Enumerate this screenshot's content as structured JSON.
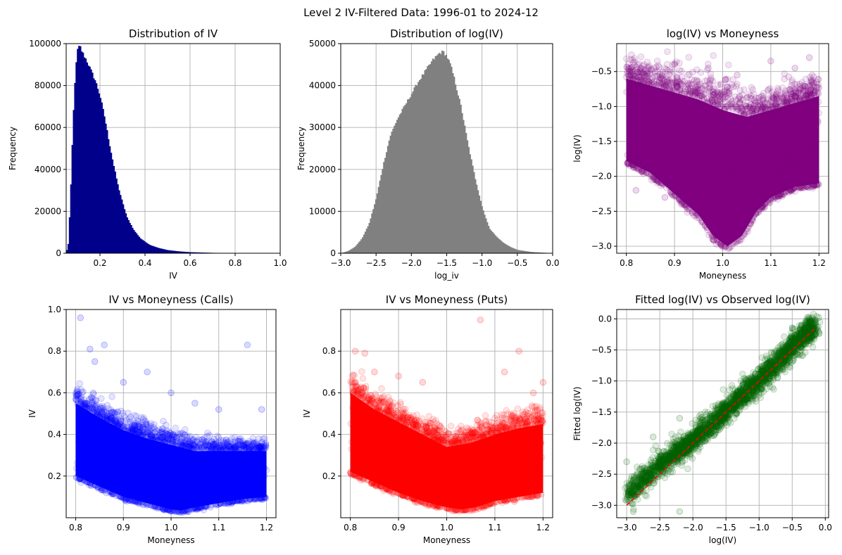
{
  "figure": {
    "title": "Level 2 IV-Filtered Data: 1996-01 to 2024-12"
  },
  "chart_data": [
    {
      "type": "histogram",
      "title": "Distribution of IV",
      "xlabel": "IV",
      "ylabel": "Frequency",
      "xlim": [
        0.05,
        1.0
      ],
      "ylim": [
        0,
        100000
      ],
      "xticks": [
        0.2,
        0.4,
        0.6,
        0.8,
        1.0
      ],
      "xtick_labels": [
        "0.2",
        "0.4",
        "0.6",
        "0.8",
        "1.0"
      ],
      "yticks": [
        0,
        20000,
        40000,
        60000,
        80000,
        100000
      ],
      "ytick_labels": [
        "0",
        "20000",
        "40000",
        "60000",
        "80000",
        "100000"
      ],
      "grid": true,
      "color": "#00008b",
      "curve": [
        [
          0.05,
          0
        ],
        [
          0.06,
          5000
        ],
        [
          0.07,
          30000
        ],
        [
          0.08,
          62000
        ],
        [
          0.09,
          85000
        ],
        [
          0.1,
          97000
        ],
        [
          0.11,
          99000
        ],
        [
          0.12,
          96000
        ],
        [
          0.14,
          92000
        ],
        [
          0.16,
          87000
        ],
        [
          0.18,
          82000
        ],
        [
          0.2,
          75000
        ],
        [
          0.22,
          65000
        ],
        [
          0.24,
          53000
        ],
        [
          0.26,
          42000
        ],
        [
          0.28,
          32000
        ],
        [
          0.3,
          24000
        ],
        [
          0.32,
          17000
        ],
        [
          0.35,
          11000
        ],
        [
          0.38,
          7000
        ],
        [
          0.42,
          4000
        ],
        [
          0.46,
          2500
        ],
        [
          0.5,
          1500
        ],
        [
          0.55,
          900
        ],
        [
          0.6,
          500
        ],
        [
          0.7,
          200
        ],
        [
          0.8,
          80
        ],
        [
          0.9,
          30
        ],
        [
          1.0,
          0
        ]
      ]
    },
    {
      "type": "histogram",
      "title": "Distribution of log(IV)",
      "xlabel": "log_iv",
      "ylabel": "Frequency",
      "xlim": [
        -3.0,
        0.0
      ],
      "ylim": [
        0,
        50000
      ],
      "xticks": [
        -3.0,
        -2.5,
        -2.0,
        -1.5,
        -1.0,
        -0.5,
        0.0
      ],
      "xtick_labels": [
        "−3.0",
        "−2.5",
        "−2.0",
        "−1.5",
        "−1.0",
        "−0.5",
        "0.0"
      ],
      "yticks": [
        0,
        10000,
        20000,
        30000,
        40000,
        50000
      ],
      "ytick_labels": [
        "0",
        "10000",
        "20000",
        "30000",
        "40000",
        "50000"
      ],
      "grid": true,
      "color": "#808080",
      "curve": [
        [
          -3.0,
          0
        ],
        [
          -2.9,
          500
        ],
        [
          -2.8,
          1500
        ],
        [
          -2.7,
          3500
        ],
        [
          -2.6,
          7000
        ],
        [
          -2.5,
          13000
        ],
        [
          -2.4,
          21000
        ],
        [
          -2.3,
          28000
        ],
        [
          -2.2,
          32000
        ],
        [
          -2.1,
          35000
        ],
        [
          -2.0,
          38000
        ],
        [
          -1.9,
          41000
        ],
        [
          -1.8,
          43500
        ],
        [
          -1.7,
          46000
        ],
        [
          -1.6,
          47800
        ],
        [
          -1.55,
          48000
        ],
        [
          -1.5,
          47000
        ],
        [
          -1.45,
          45000
        ],
        [
          -1.4,
          42000
        ],
        [
          -1.3,
          35000
        ],
        [
          -1.2,
          26000
        ],
        [
          -1.1,
          18000
        ],
        [
          -1.0,
          11000
        ],
        [
          -0.9,
          6000
        ],
        [
          -0.8,
          4000
        ],
        [
          -0.7,
          2500
        ],
        [
          -0.6,
          1500
        ],
        [
          -0.5,
          800
        ],
        [
          -0.3,
          300
        ],
        [
          0.0,
          0
        ]
      ]
    },
    {
      "type": "scatter",
      "title": "log(IV) vs Moneyness",
      "xlabel": "Moneyness",
      "ylabel": "log(IV)",
      "xlim": [
        0.78,
        1.22
      ],
      "ylim": [
        -3.1,
        -0.1
      ],
      "xticks": [
        0.8,
        0.9,
        1.0,
        1.1,
        1.2
      ],
      "xtick_labels": [
        "0.8",
        "0.9",
        "1.0",
        "1.1",
        "1.2"
      ],
      "yticks": [
        -3.0,
        -2.5,
        -2.0,
        -1.5,
        -1.0,
        -0.5
      ],
      "ytick_labels": [
        "−3.0",
        "−2.5",
        "−2.0",
        "−1.5",
        "−1.0",
        "−0.5"
      ],
      "grid": true,
      "color": "#800080",
      "core_lower": [
        [
          0.8,
          -1.78
        ],
        [
          0.85,
          -1.95
        ],
        [
          0.9,
          -2.25
        ],
        [
          0.95,
          -2.55
        ],
        [
          0.98,
          -2.85
        ],
        [
          1.01,
          -3.0
        ],
        [
          1.04,
          -2.85
        ],
        [
          1.07,
          -2.5
        ],
        [
          1.1,
          -2.3
        ],
        [
          1.15,
          -2.15
        ],
        [
          1.2,
          -2.1
        ]
      ],
      "core_upper": [
        [
          0.8,
          -0.6
        ],
        [
          0.85,
          -0.7
        ],
        [
          0.9,
          -0.8
        ],
        [
          0.95,
          -0.9
        ],
        [
          1.0,
          -1.05
        ],
        [
          1.05,
          -1.15
        ],
        [
          1.1,
          -1.05
        ],
        [
          1.15,
          -0.95
        ],
        [
          1.2,
          -0.85
        ]
      ],
      "outliers": [
        [
          0.83,
          -0.45
        ],
        [
          0.86,
          -0.5
        ],
        [
          0.9,
          -0.4
        ],
        [
          0.97,
          -0.45
        ],
        [
          1.03,
          -0.55
        ],
        [
          1.1,
          -0.35
        ],
        [
          1.18,
          -0.3
        ],
        [
          1.15,
          -0.45
        ],
        [
          0.88,
          -2.3
        ],
        [
          0.92,
          -2.4
        ],
        [
          0.82,
          -2.2
        ]
      ]
    },
    {
      "type": "scatter",
      "title": "IV vs Moneyness (Calls)",
      "xlabel": "Moneyness",
      "ylabel": "IV",
      "xlim": [
        0.78,
        1.22
      ],
      "ylim": [
        0.0,
        1.0
      ],
      "xticks": [
        0.8,
        0.9,
        1.0,
        1.1,
        1.2
      ],
      "xtick_labels": [
        "0.8",
        "0.9",
        "1.0",
        "1.1",
        "1.2"
      ],
      "yticks": [
        0.2,
        0.4,
        0.6,
        0.8,
        1.0
      ],
      "ytick_labels": [
        "0.2",
        "0.4",
        "0.6",
        "0.8",
        "1.0"
      ],
      "grid": true,
      "color": "#0000ff",
      "core_lower": [
        [
          0.8,
          0.2
        ],
        [
          0.85,
          0.15
        ],
        [
          0.9,
          0.1
        ],
        [
          0.95,
          0.07
        ],
        [
          1.0,
          0.04
        ],
        [
          1.02,
          0.035
        ],
        [
          1.05,
          0.05
        ],
        [
          1.1,
          0.07
        ],
        [
          1.15,
          0.09
        ],
        [
          1.2,
          0.1
        ]
      ],
      "core_upper": [
        [
          0.8,
          0.55
        ],
        [
          0.85,
          0.48
        ],
        [
          0.9,
          0.42
        ],
        [
          0.95,
          0.38
        ],
        [
          1.0,
          0.35
        ],
        [
          1.05,
          0.32
        ],
        [
          1.1,
          0.32
        ],
        [
          1.15,
          0.32
        ],
        [
          1.2,
          0.32
        ]
      ],
      "outliers": [
        [
          0.81,
          0.96
        ],
        [
          0.83,
          0.81
        ],
        [
          0.86,
          0.83
        ],
        [
          0.84,
          0.75
        ],
        [
          0.9,
          0.65
        ],
        [
          0.95,
          0.7
        ],
        [
          1.0,
          0.6
        ],
        [
          1.05,
          0.55
        ],
        [
          1.1,
          0.52
        ],
        [
          1.16,
          0.83
        ],
        [
          1.19,
          0.52
        ]
      ]
    },
    {
      "type": "scatter",
      "title": "IV vs Moneyness (Puts)",
      "xlabel": "Moneyness",
      "ylabel": "IV",
      "xlim": [
        0.78,
        1.22
      ],
      "ylim": [
        0.0,
        1.0
      ],
      "xticks": [
        0.8,
        0.9,
        1.0,
        1.1,
        1.2
      ],
      "xtick_labels": [
        "0.8",
        "0.9",
        "1.0",
        "1.1",
        "1.2"
      ],
      "yticks": [
        0.2,
        0.4,
        0.6,
        0.8
      ],
      "ytick_labels": [
        "0.2",
        "0.4",
        "0.6",
        "0.8"
      ],
      "grid": true,
      "color": "#ff0000",
      "core_lower": [
        [
          0.8,
          0.22
        ],
        [
          0.85,
          0.17
        ],
        [
          0.9,
          0.12
        ],
        [
          0.95,
          0.08
        ],
        [
          1.0,
          0.05
        ],
        [
          1.03,
          0.04
        ],
        [
          1.06,
          0.05
        ],
        [
          1.1,
          0.08
        ],
        [
          1.15,
          0.1
        ],
        [
          1.2,
          0.12
        ]
      ],
      "core_upper": [
        [
          0.8,
          0.6
        ],
        [
          0.85,
          0.52
        ],
        [
          0.9,
          0.46
        ],
        [
          0.95,
          0.4
        ],
        [
          1.0,
          0.34
        ],
        [
          1.05,
          0.36
        ],
        [
          1.1,
          0.4
        ],
        [
          1.15,
          0.43
        ],
        [
          1.2,
          0.45
        ]
      ],
      "outliers": [
        [
          0.81,
          0.8
        ],
        [
          0.83,
          0.79
        ],
        [
          0.85,
          0.7
        ],
        [
          0.9,
          0.68
        ],
        [
          0.95,
          0.65
        ],
        [
          1.07,
          0.95
        ],
        [
          1.15,
          0.8
        ],
        [
          1.12,
          0.7
        ],
        [
          1.2,
          0.65
        ],
        [
          1.18,
          0.6
        ]
      ]
    },
    {
      "type": "scatter",
      "title": "Fitted log(IV) vs Observed log(IV)",
      "xlabel": "log(IV)",
      "ylabel": "Fitted log(IV)",
      "xlim": [
        -3.15,
        0.05
      ],
      "ylim": [
        -3.2,
        0.15
      ],
      "xticks": [
        -3.0,
        -2.5,
        -2.0,
        -1.5,
        -1.0,
        -0.5,
        0.0
      ],
      "xtick_labels": [
        "−3.0",
        "−2.5",
        "−2.0",
        "−1.5",
        "−1.0",
        "−0.5",
        "0.0"
      ],
      "yticks": [
        -3.0,
        -2.5,
        -2.0,
        -1.5,
        -1.0,
        -0.5,
        0.0
      ],
      "ytick_labels": [
        "−3.0",
        "−2.5",
        "−2.0",
        "−1.5",
        "−1.0",
        "−0.5",
        "0.0"
      ],
      "grid": true,
      "color": "#006400",
      "band_center": [
        [
          -3.0,
          -2.85
        ],
        [
          -2.5,
          -2.35
        ],
        [
          -2.0,
          -1.95
        ],
        [
          -1.5,
          -1.48
        ],
        [
          -1.0,
          -1.0
        ],
        [
          -0.5,
          -0.45
        ],
        [
          -0.2,
          -0.15
        ]
      ],
      "band_halfwidth": 0.18,
      "outliers": [
        [
          -3.0,
          -2.3
        ],
        [
          -2.9,
          -3.1
        ],
        [
          -2.2,
          -3.1
        ],
        [
          -2.6,
          -1.9
        ],
        [
          -1.2,
          -1.0
        ],
        [
          -0.5,
          -0.15
        ],
        [
          -0.1,
          0.02
        ],
        [
          -2.2,
          -1.6
        ]
      ],
      "reference_line": {
        "x": [
          -3.0,
          -0.15
        ],
        "y": [
          -3.0,
          -0.15
        ],
        "color": "#ff0000",
        "style": "dashed"
      }
    }
  ]
}
